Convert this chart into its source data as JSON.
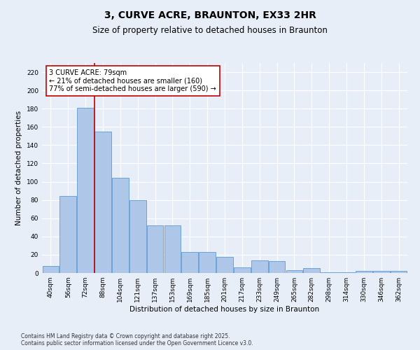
{
  "title": "3, CURVE ACRE, BRAUNTON, EX33 2HR",
  "subtitle": "Size of property relative to detached houses in Braunton",
  "xlabel": "Distribution of detached houses by size in Braunton",
  "ylabel": "Number of detached properties",
  "categories": [
    "40sqm",
    "56sqm",
    "72sqm",
    "88sqm",
    "104sqm",
    "121sqm",
    "137sqm",
    "153sqm",
    "169sqm",
    "185sqm",
    "201sqm",
    "217sqm",
    "233sqm",
    "249sqm",
    "265sqm",
    "282sqm",
    "298sqm",
    "314sqm",
    "330sqm",
    "346sqm",
    "362sqm"
  ],
  "values": [
    8,
    84,
    181,
    155,
    104,
    80,
    52,
    52,
    23,
    23,
    18,
    6,
    14,
    13,
    3,
    5,
    1,
    1,
    2,
    2,
    2
  ],
  "bar_color": "#aec6e8",
  "bar_edge_color": "#5b9bd5",
  "vline_x_index": 2,
  "vline_color": "#c00000",
  "annotation_text": "3 CURVE ACRE: 79sqm\n← 21% of detached houses are smaller (160)\n77% of semi-detached houses are larger (590) →",
  "annotation_box_color": "#ffffff",
  "annotation_box_edge": "#c00000",
  "ylim": [
    0,
    230
  ],
  "yticks": [
    0,
    20,
    40,
    60,
    80,
    100,
    120,
    140,
    160,
    180,
    200,
    220
  ],
  "background_color": "#e8eef8",
  "grid_color": "#ffffff",
  "footer": "Contains HM Land Registry data © Crown copyright and database right 2025.\nContains public sector information licensed under the Open Government Licence v3.0.",
  "title_fontsize": 10,
  "subtitle_fontsize": 8.5,
  "axis_label_fontsize": 7.5,
  "tick_fontsize": 6.5,
  "annotation_fontsize": 7,
  "footer_fontsize": 5.5
}
